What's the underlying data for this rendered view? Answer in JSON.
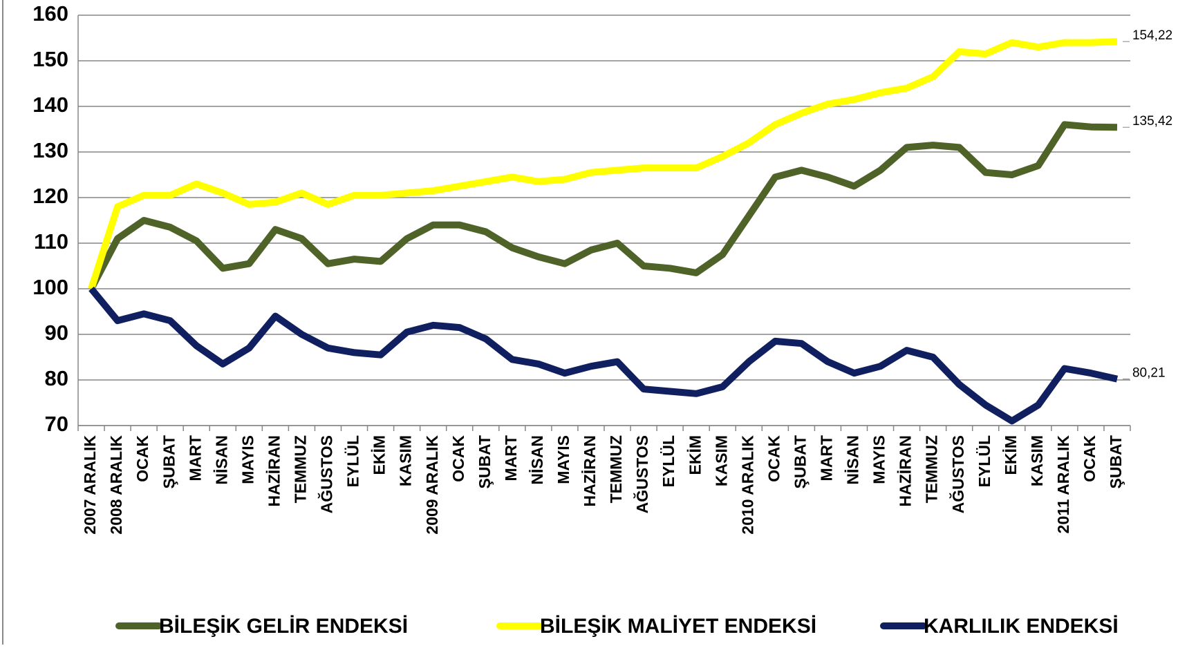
{
  "chart_data": {
    "type": "line",
    "categories": [
      "2007 ARALIK",
      "2008 ARALIK",
      "OCAK",
      "ŞUBAT",
      "MART",
      "NİSAN",
      "MAYIS",
      "HAZİRAN",
      "TEMMUZ",
      "AĞUSTOS",
      "EYLÜL",
      "EKİM",
      "KASIM",
      "2009 ARALIK",
      "OCAK",
      "ŞUBAT",
      "MART",
      "NİSAN",
      "MAYIS",
      "HAZİRAN",
      "TEMMUZ",
      "AĞUSTOS",
      "EYLÜL",
      "EKİM",
      "KASIM",
      "2010 ARALIK",
      "OCAK",
      "ŞUBAT",
      "MART",
      "NİSAN",
      "MAYIS",
      "HAZİRAN",
      "TEMMUZ",
      "AĞUSTOS",
      "EYLÜL",
      "EKİM",
      "KASIM",
      "2011 ARALIK",
      "OCAK",
      "ŞUBAT"
    ],
    "series": [
      {
        "name": "BİLEŞİK GELİR ENDEKSİ",
        "color": "#4f6228",
        "values": [
          100,
          111,
          115,
          113.5,
          110.5,
          104.5,
          105.5,
          113,
          111,
          105.5,
          106.5,
          106,
          111,
          114,
          114,
          112.5,
          109,
          107,
          105.5,
          108.5,
          110,
          105,
          104.5,
          103.5,
          107.5,
          116,
          124.5,
          126,
          124.5,
          122.5,
          126,
          131,
          131.5,
          131,
          125.5,
          125,
          127,
          136,
          135.5,
          135.42
        ],
        "value_labels": [
          null,
          null,
          null,
          null,
          null,
          null,
          null,
          null,
          null,
          null,
          null,
          null,
          null,
          null,
          null,
          null,
          null,
          null,
          null,
          null,
          null,
          null,
          null,
          null,
          null,
          null,
          null,
          null,
          null,
          null,
          null,
          null,
          null,
          null,
          null,
          null,
          null,
          null,
          null,
          "135,42"
        ]
      },
      {
        "name": "BİLEŞİK MALİYET ENDEKSİ",
        "color": "#ffff00",
        "values": [
          100,
          118,
          120.5,
          120.5,
          123,
          121,
          118.5,
          119,
          121,
          118.5,
          120.5,
          120.5,
          121,
          121.5,
          122.5,
          123.5,
          124.5,
          123.5,
          124,
          125.5,
          126,
          126.5,
          126.5,
          126.5,
          129,
          132,
          136,
          138.5,
          140.5,
          141.5,
          143,
          144,
          146.5,
          152,
          151.5,
          154,
          153,
          154,
          154,
          154.22
        ],
        "value_labels": [
          null,
          null,
          null,
          null,
          null,
          null,
          null,
          null,
          null,
          null,
          null,
          null,
          null,
          null,
          null,
          null,
          null,
          null,
          null,
          null,
          null,
          null,
          null,
          null,
          null,
          null,
          null,
          null,
          null,
          null,
          null,
          null,
          null,
          null,
          null,
          null,
          null,
          null,
          null,
          "154,22"
        ]
      },
      {
        "name": "KARLILIK ENDEKSİ",
        "color": "#0f1f5f",
        "values": [
          100,
          93,
          94.5,
          93,
          87.5,
          83.5,
          87,
          94,
          90,
          87,
          86,
          85.5,
          90.5,
          92,
          91.5,
          89,
          84.5,
          83.5,
          81.5,
          83,
          84,
          78,
          77.5,
          77,
          78.5,
          84,
          88.5,
          88,
          84,
          81.5,
          83,
          86.5,
          85,
          79,
          74.5,
          71,
          74.5,
          82.5,
          81.5,
          80.21
        ],
        "value_labels": [
          null,
          null,
          null,
          null,
          null,
          null,
          null,
          null,
          null,
          null,
          null,
          null,
          null,
          null,
          null,
          null,
          null,
          null,
          null,
          null,
          null,
          null,
          null,
          null,
          null,
          null,
          null,
          null,
          null,
          null,
          null,
          null,
          null,
          null,
          null,
          null,
          null,
          null,
          null,
          "80,21"
        ]
      }
    ],
    "ylim": [
      70,
      160
    ],
    "yticks": [
      70,
      80,
      90,
      100,
      110,
      120,
      130,
      140,
      150,
      160
    ],
    "grid": true,
    "legend": "bottom"
  }
}
